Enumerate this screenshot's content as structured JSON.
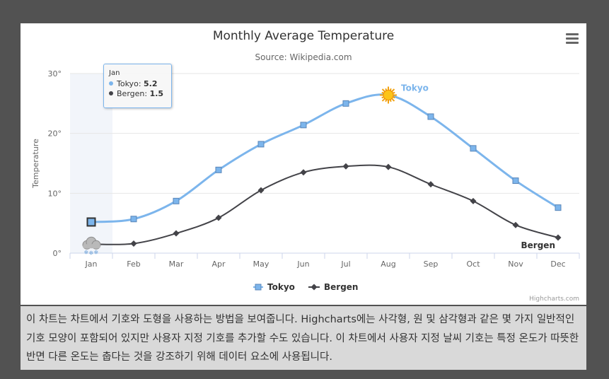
{
  "chart_data": {
    "type": "line",
    "title": "Monthly Average Temperature",
    "subtitle": "Source: Wikipedia.com",
    "ylabel": "Temperature",
    "ylim": [
      0,
      30
    ],
    "y_ticks": [
      "0°",
      "10°",
      "20°",
      "30°"
    ],
    "y_tick_values": [
      0,
      10,
      20,
      30
    ],
    "categories": [
      "Jan",
      "Feb",
      "Mar",
      "Apr",
      "May",
      "Jun",
      "Jul",
      "Aug",
      "Sep",
      "Oct",
      "Nov",
      "Dec"
    ],
    "series": [
      {
        "name": "Tokyo",
        "color": "#7cb5ec",
        "marker": "square",
        "values": [
          5.2,
          5.7,
          8.7,
          13.9,
          18.2,
          21.4,
          25.0,
          26.4,
          22.8,
          17.5,
          12.1,
          7.6
        ],
        "special_marker": {
          "index": 7,
          "icon": "sun-icon"
        }
      },
      {
        "name": "Bergen",
        "color": "#434348",
        "marker": "diamond",
        "values": [
          1.5,
          1.6,
          3.3,
          5.9,
          10.5,
          13.5,
          14.5,
          14.4,
          11.5,
          8.7,
          4.7,
          2.6
        ],
        "special_marker": {
          "index": 0,
          "icon": "snow-cloud-icon"
        }
      }
    ],
    "grid": true,
    "legend": "bottom-center",
    "hovered_index": 0
  },
  "tooltip": {
    "header": "Jan",
    "rows": [
      {
        "name": "Tokyo",
        "value": "5.2",
        "color": "#7cb5ec"
      },
      {
        "name": "Bergen",
        "value": "1.5",
        "color": "#434348"
      }
    ]
  },
  "credits": "Highcharts.com",
  "description": "이 차트는 차트에서 기호와 도형을 사용하는 방법을 보여줍니다. Highcharts에는 사각형, 원 및 삼각형과 같은 몇 가지 일반적인 기호 모양이 포함되어 있지만 사용자 지정 기호를 추가할 수도 있습니다. 이 차트에서 사용자 지정 날씨 기호는 특정 온도가 따뜻한 반면 다른 온도는 춥다는 것을 강조하기 위해 데이터 요소에 사용됩니다."
}
